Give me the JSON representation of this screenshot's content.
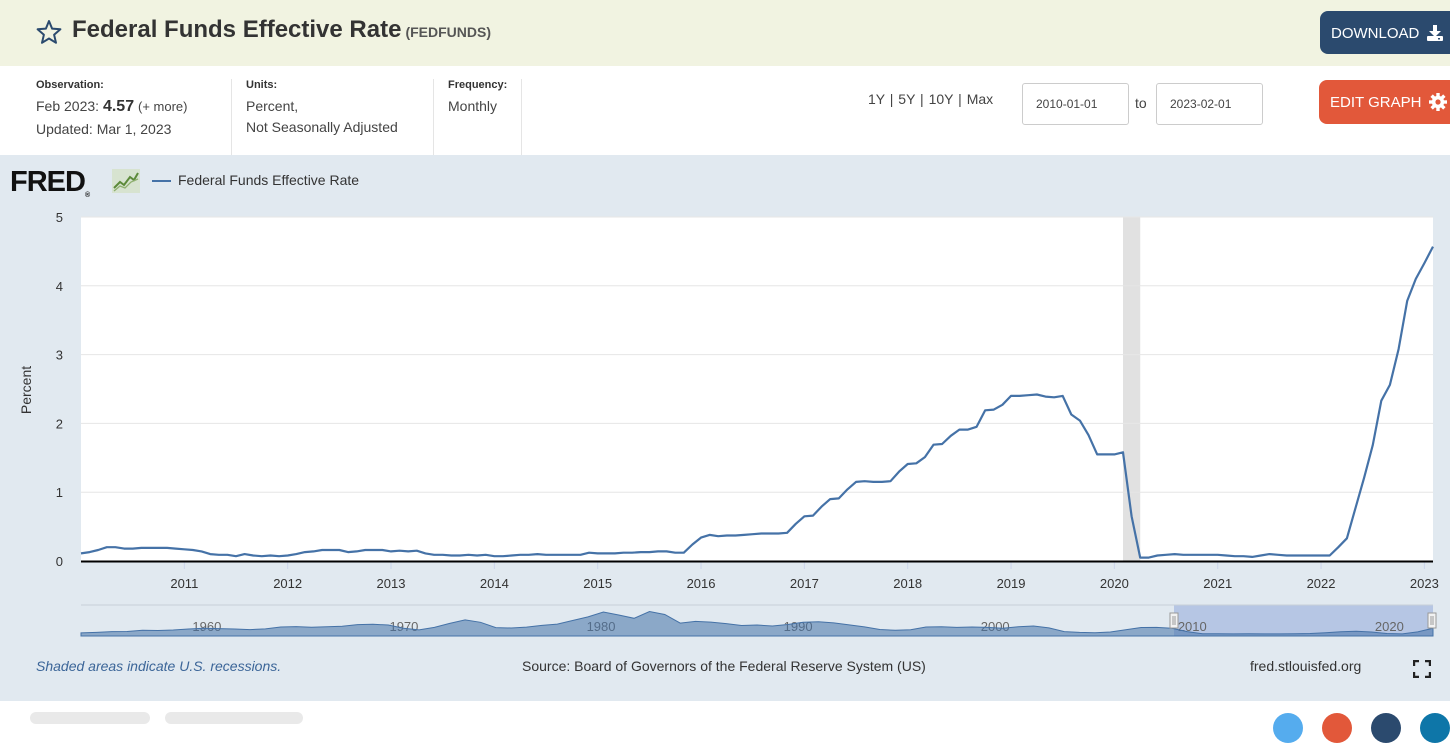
{
  "header": {
    "title": "Federal Funds Effective Rate",
    "series_code": "(FEDFUNDS)",
    "download_label": "DOWNLOAD"
  },
  "meta": {
    "observation_label": "Observation:",
    "observation_period": "Feb 2023:",
    "observation_value": "4.57",
    "observation_more": "(+ more)",
    "updated": "Updated: Mar 1, 2023",
    "units_label": "Units:",
    "units_line1": "Percent,",
    "units_line2": "Not Seasonally Adjusted",
    "frequency_label": "Frequency:",
    "frequency_value": "Monthly"
  },
  "controls": {
    "ranges": [
      "1Y",
      "5Y",
      "10Y",
      "Max"
    ],
    "start_date": "2010-01-01",
    "to_label": "to",
    "end_date": "2023-02-01",
    "edit_label": "EDIT GRAPH"
  },
  "logo": {
    "text": "FRED",
    "reg": "®"
  },
  "footer": {
    "recession_note": "Shaded areas indicate U.S. recessions.",
    "source": "Source: Board of Governors of the Federal Reserve System (US)",
    "site": "fred.stlouisfed.org"
  },
  "colors": {
    "series": "#4572a7",
    "header_bg": "#f1f3e1",
    "download_bg": "#2b4a6e",
    "edit_bg": "#e2583a",
    "panel_bg": "#e1e9f0"
  },
  "chart_data": {
    "type": "line",
    "series": [
      {
        "name": "Federal Funds Effective Rate",
        "x_start": "2010-01",
        "frequency": "monthly",
        "values": [
          0.11,
          0.13,
          0.16,
          0.2,
          0.2,
          0.18,
          0.18,
          0.19,
          0.19,
          0.19,
          0.19,
          0.18,
          0.17,
          0.16,
          0.14,
          0.1,
          0.09,
          0.09,
          0.07,
          0.1,
          0.08,
          0.07,
          0.08,
          0.07,
          0.08,
          0.1,
          0.13,
          0.14,
          0.16,
          0.16,
          0.16,
          0.13,
          0.14,
          0.16,
          0.16,
          0.16,
          0.14,
          0.15,
          0.14,
          0.15,
          0.11,
          0.09,
          0.09,
          0.08,
          0.08,
          0.09,
          0.08,
          0.09,
          0.07,
          0.07,
          0.08,
          0.09,
          0.09,
          0.1,
          0.09,
          0.09,
          0.09,
          0.09,
          0.09,
          0.12,
          0.11,
          0.11,
          0.11,
          0.12,
          0.12,
          0.13,
          0.13,
          0.14,
          0.14,
          0.12,
          0.12,
          0.24,
          0.34,
          0.38,
          0.36,
          0.37,
          0.37,
          0.38,
          0.39,
          0.4,
          0.4,
          0.4,
          0.41,
          0.54,
          0.65,
          0.66,
          0.79,
          0.9,
          0.91,
          1.04,
          1.15,
          1.16,
          1.15,
          1.15,
          1.16,
          1.3,
          1.41,
          1.42,
          1.51,
          1.69,
          1.7,
          1.82,
          1.91,
          1.91,
          1.95,
          2.19,
          2.2,
          2.27,
          2.4,
          2.4,
          2.41,
          2.42,
          2.39,
          2.38,
          2.4,
          2.13,
          2.04,
          1.83,
          1.55,
          1.55,
          1.55,
          1.58,
          0.65,
          0.05,
          0.05,
          0.08,
          0.09,
          0.1,
          0.09,
          0.09,
          0.09,
          0.09,
          0.09,
          0.08,
          0.07,
          0.07,
          0.06,
          0.08,
          0.1,
          0.09,
          0.08,
          0.08,
          0.08,
          0.08,
          0.08,
          0.08,
          0.2,
          0.33,
          0.77,
          1.21,
          1.68,
          2.33,
          2.56,
          3.08,
          3.78,
          4.1,
          4.33,
          4.57
        ]
      }
    ],
    "x_ticks": [
      "2011",
      "2012",
      "2013",
      "2014",
      "2015",
      "2016",
      "2017",
      "2018",
      "2019",
      "2020",
      "2021",
      "2022",
      "2023"
    ],
    "ylabel": "Percent",
    "ylim": [
      0,
      5
    ],
    "y_ticks": [
      "0",
      "1",
      "2",
      "3",
      "4",
      "5"
    ],
    "recessions": [
      {
        "start": "2020-02",
        "end": "2020-04"
      }
    ],
    "navigator": {
      "x_ticks": [
        "1960",
        "1970",
        "1980",
        "1990",
        "2000",
        "2010",
        "2020"
      ],
      "values": [
        0.9,
        1.3,
        1.9,
        2.0,
        3.0,
        2.8,
        3.2,
        4.0,
        4.6,
        4.3,
        4.0,
        3.5,
        4.1,
        5.6,
        5.9,
        5.4,
        5.8,
        6.2,
        7.5,
        7.8,
        7.2,
        4.6,
        3.3,
        5.3,
        8.5,
        11.3,
        9.4,
        5.1,
        4.8,
        5.5,
        6.9,
        7.9,
        10.8,
        13.7,
        17.6,
        15.2,
        12.6,
        18.0,
        15.6,
        8.7,
        10.1,
        9.5,
        8.3,
        6.8,
        7.2,
        6.4,
        7.6,
        9.4,
        9.8,
        8.9,
        7.3,
        5.7,
        3.6,
        3.0,
        3.4,
        5.6,
        5.8,
        5.3,
        5.6,
        5.3,
        4.6,
        5.8,
        6.4,
        4.9,
        1.9,
        1.3,
        1.0,
        1.6,
        3.4,
        5.2,
        5.3,
        4.6,
        1.9,
        0.16,
        0.16,
        0.1,
        0.14,
        0.11,
        0.09,
        0.13,
        0.38,
        1.0,
        1.8,
        2.2,
        1.6,
        0.4,
        0.08,
        1.7,
        4.57
      ]
    }
  }
}
